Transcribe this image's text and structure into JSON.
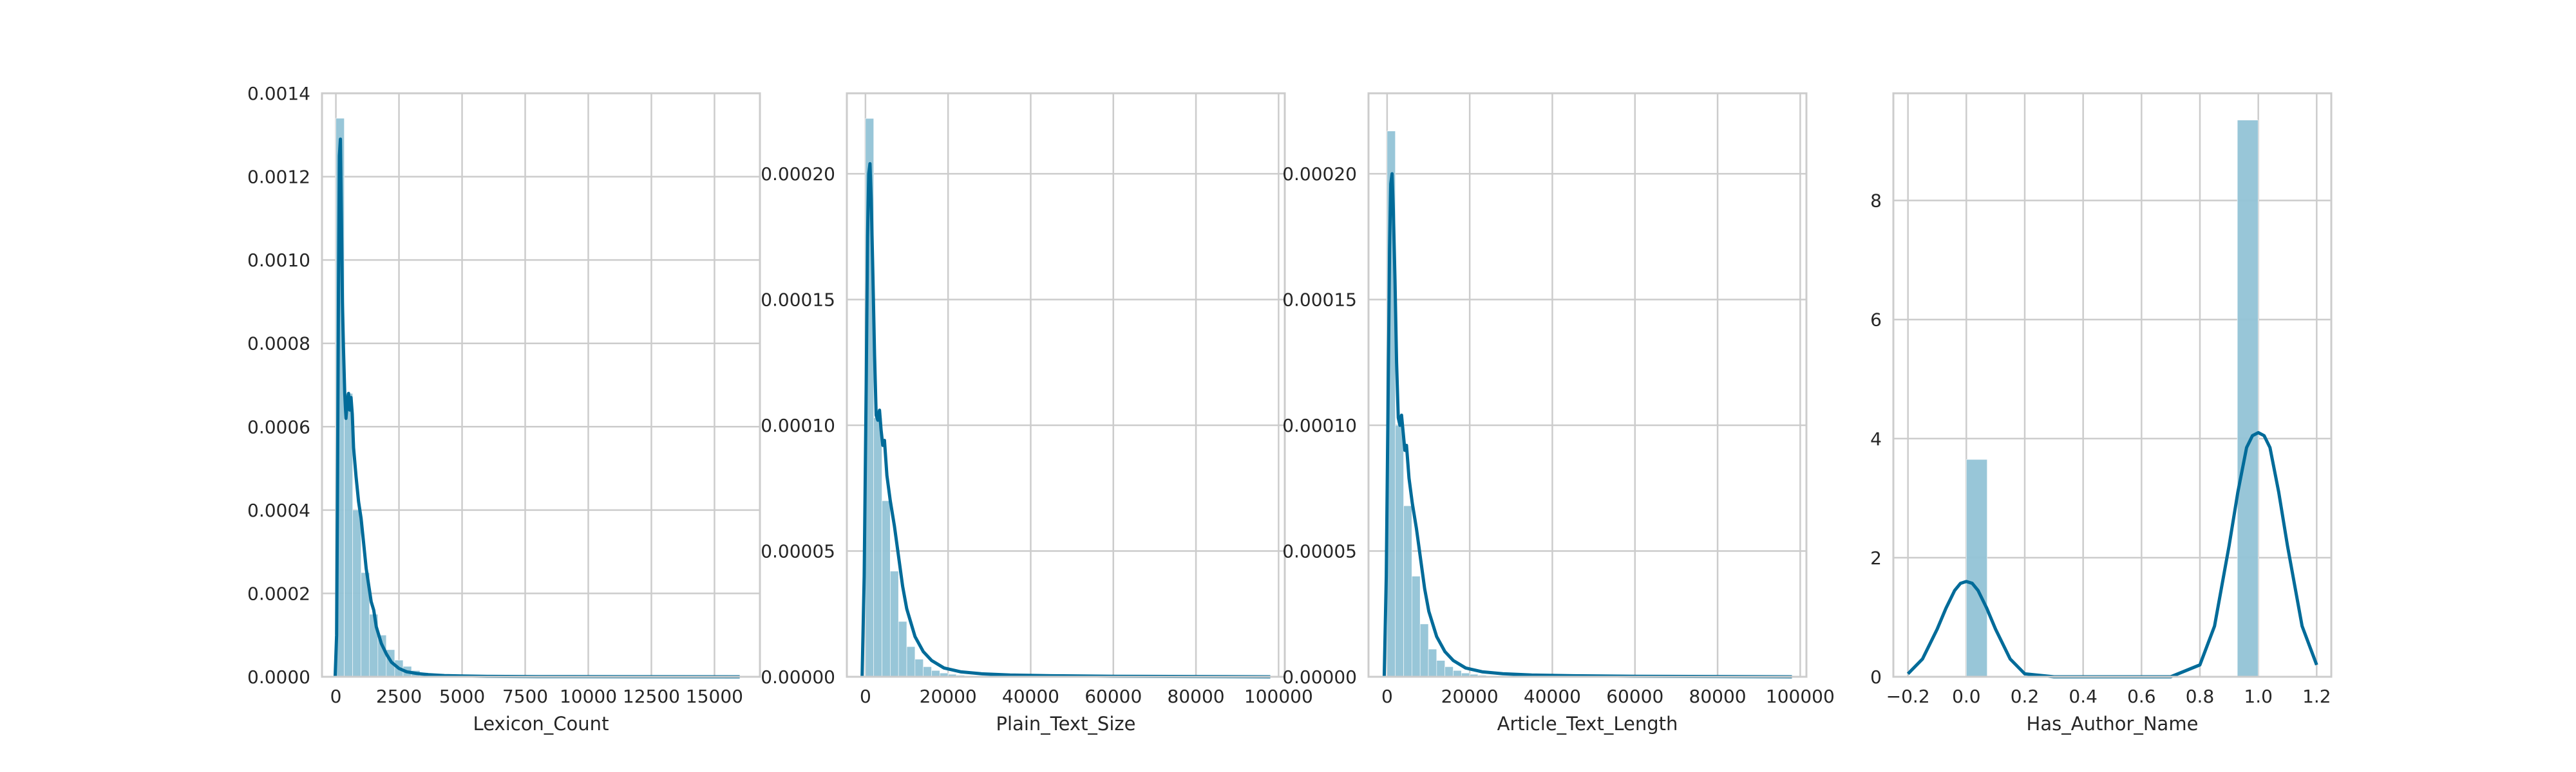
{
  "colors": {
    "hist_fill": "#92c3d6",
    "kde_line": "#006b99",
    "grid": "#cccccc",
    "frame": "#cccccc",
    "text": "#262626",
    "background": "#ffffff"
  },
  "chart_data": [
    {
      "type": "bar",
      "xlabel": "Lexicon_Count",
      "ylabel": "",
      "xlim": [
        -550,
        16800
      ],
      "ylim": [
        0,
        0.0014
      ],
      "xticks": [
        0,
        2500,
        5000,
        7500,
        10000,
        12500,
        15000
      ],
      "xtick_labels": [
        "0",
        "2500",
        "5000",
        "7500",
        "10000",
        "12500",
        "15000"
      ],
      "yticks": [
        0,
        0.0002,
        0.0004,
        0.0006,
        0.0008,
        0.001,
        0.0012,
        0.0014
      ],
      "ytick_labels": [
        "0.0000",
        "0.0002",
        "0.0004",
        "0.0006",
        "0.0008",
        "0.0010",
        "0.0012",
        "0.0014"
      ],
      "grid": true,
      "histogram": {
        "bin_start": 0,
        "bin_width": 333,
        "values": [
          0.00134,
          0.00068,
          0.0004,
          0.00025,
          0.00015,
          0.0001,
          6.5e-05,
          4e-05,
          2.5e-05,
          1.5e-05,
          1e-05,
          7e-06,
          5e-06,
          3e-06,
          2e-06,
          1e-06
        ]
      },
      "kde": {
        "x": [
          -30,
          30,
          60,
          100,
          140,
          180,
          220,
          260,
          300,
          350,
          400,
          450,
          500,
          550,
          600,
          650,
          700,
          800,
          900,
          1000,
          1100,
          1200,
          1300,
          1400,
          1500,
          1600,
          1700,
          1800,
          2000,
          2200,
          2500,
          2800,
          3200,
          3700,
          4300,
          5000,
          6000,
          8000,
          12000,
          16000
        ],
        "y": [
          0.0,
          0.0001,
          0.0004,
          0.0009,
          0.00125,
          0.00129,
          0.0011,
          0.0009,
          0.00079,
          0.00068,
          0.00062,
          0.00066,
          0.00068,
          0.00064,
          0.00067,
          0.00063,
          0.00055,
          0.00048,
          0.00042,
          0.00038,
          0.00032,
          0.00026,
          0.00022,
          0.00018,
          0.00016,
          0.00012,
          0.0001,
          8e-05,
          5.5e-05,
          3.5e-05,
          2e-05,
          1.2e-05,
          8e-06,
          5e-06,
          3e-06,
          2e-06,
          1e-06,
          5e-07,
          2e-07,
          0.0
        ]
      }
    },
    {
      "type": "bar",
      "xlabel": "Plain_Text_Size",
      "ylabel": "",
      "xlim": [
        -4500,
        101500
      ],
      "ylim": [
        0,
        0.000232
      ],
      "xticks": [
        0,
        20000,
        40000,
        60000,
        80000,
        100000
      ],
      "xtick_labels": [
        "0",
        "20000",
        "40000",
        "60000",
        "80000",
        "100000"
      ],
      "yticks": [
        0,
        5e-05,
        0.0001,
        0.00015,
        0.0002
      ],
      "ytick_labels": [
        "0.00000",
        "0.00005",
        "0.00010",
        "0.00015",
        "0.00020"
      ],
      "grid": true,
      "histogram": {
        "bin_start": 0,
        "bin_width": 2000,
        "values": [
          0.000222,
          0.000103,
          7e-05,
          4.2e-05,
          2.2e-05,
          1.2e-05,
          7e-06,
          4e-06,
          2.5e-06,
          1.5e-06,
          1e-06,
          6e-07,
          4e-07,
          3e-07
        ]
      },
      "kde": {
        "x": [
          -800,
          -300,
          200,
          500,
          800,
          1100,
          1400,
          1800,
          2200,
          2600,
          3000,
          3400,
          3800,
          4200,
          4600,
          5200,
          6000,
          7000,
          8000,
          9000,
          10000,
          12000,
          14000,
          16000,
          19000,
          23000,
          28000,
          35000,
          45000,
          60000,
          80000,
          98000
        ],
        "y": [
          0.0,
          4e-05,
          0.00012,
          0.000175,
          0.0002,
          0.000204,
          0.00019,
          0.00016,
          0.000128,
          0.000104,
          0.000102,
          0.000106,
          9.8e-05,
          9.2e-05,
          9.4e-05,
          8e-05,
          7e-05,
          6e-05,
          4.8e-05,
          3.6e-05,
          2.7e-05,
          1.6e-05,
          1e-05,
          6.5e-06,
          3.5e-06,
          2e-06,
          1.2e-06,
          7e-07,
          4e-07,
          2e-07,
          1e-07,
          0.0
        ]
      }
    },
    {
      "type": "bar",
      "xlabel": "Article_Text_Length",
      "ylabel": "",
      "xlim": [
        -4500,
        101500
      ],
      "ylim": [
        0,
        0.000232
      ],
      "xticks": [
        0,
        20000,
        40000,
        60000,
        80000,
        100000
      ],
      "xtick_labels": [
        "0",
        "20000",
        "40000",
        "60000",
        "80000",
        "100000"
      ],
      "yticks": [
        0,
        5e-05,
        0.0001,
        0.00015,
        0.0002
      ],
      "ytick_labels": [
        "0.00000",
        "0.00005",
        "0.00010",
        "0.00015",
        "0.00020"
      ],
      "grid": true,
      "histogram": {
        "bin_start": 0,
        "bin_width": 2000,
        "values": [
          0.000217,
          0.0001,
          6.8e-05,
          4e-05,
          2.1e-05,
          1.1e-05,
          6.5e-06,
          4e-06,
          2.5e-06,
          1.5e-06,
          1e-06,
          6e-07,
          4e-07,
          3e-07
        ]
      },
      "kde": {
        "x": [
          -700,
          -200,
          300,
          600,
          900,
          1200,
          1500,
          1900,
          2300,
          2700,
          3100,
          3500,
          3900,
          4300,
          4700,
          5300,
          6100,
          7100,
          8100,
          9100,
          10100,
          12000,
          14000,
          16000,
          19000,
          23000,
          28000,
          35000,
          45000,
          60000,
          80000,
          98000
        ],
        "y": [
          0.0,
          4e-05,
          0.00012,
          0.00017,
          0.000196,
          0.0002,
          0.000186,
          0.000158,
          0.000125,
          0.000103,
          0.0001,
          0.000104,
          9.7e-05,
          9e-05,
          9.2e-05,
          7.9e-05,
          6.9e-05,
          5.9e-05,
          4.7e-05,
          3.5e-05,
          2.6e-05,
          1.6e-05,
          1e-05,
          6.5e-06,
          3.5e-06,
          2e-06,
          1.2e-06,
          7e-07,
          4e-07,
          2e-07,
          1e-07,
          0.0
        ]
      }
    },
    {
      "type": "bar",
      "xlabel": "Has_Author_Name",
      "ylabel": "",
      "xlim": [
        -0.25,
        1.25
      ],
      "ylim": [
        0,
        9.8
      ],
      "xticks": [
        -0.2,
        0.0,
        0.2,
        0.4,
        0.6,
        0.8,
        1.0,
        1.2
      ],
      "xtick_labels": [
        "−0.2",
        "0.0",
        "0.2",
        "0.4",
        "0.6",
        "0.8",
        "1.0",
        "1.2"
      ],
      "yticks": [
        0,
        2,
        4,
        6,
        8
      ],
      "ytick_labels": [
        "0",
        "2",
        "4",
        "6",
        "8"
      ],
      "grid": true,
      "histogram": {
        "bin_start": 0,
        "bin_width": 0.0714,
        "values": [
          3.65,
          0,
          0,
          0,
          0,
          0,
          0,
          0,
          0,
          0,
          0,
          0,
          0,
          9.35
        ]
      },
      "kde": {
        "x": [
          -0.2,
          -0.15,
          -0.1,
          -0.07,
          -0.04,
          -0.02,
          0.0,
          0.02,
          0.04,
          0.07,
          0.1,
          0.15,
          0.2,
          0.3,
          0.4,
          0.5,
          0.6,
          0.7,
          0.8,
          0.85,
          0.9,
          0.93,
          0.96,
          0.98,
          1.0,
          1.02,
          1.04,
          1.07,
          1.1,
          1.15,
          1.2
        ],
        "y": [
          0.05,
          0.3,
          0.8,
          1.15,
          1.45,
          1.57,
          1.6,
          1.57,
          1.45,
          1.15,
          0.8,
          0.3,
          0.05,
          0.0,
          0.0,
          0.0,
          0.0,
          0.0,
          0.2,
          0.85,
          2.2,
          3.1,
          3.85,
          4.05,
          4.1,
          4.05,
          3.85,
          3.1,
          2.2,
          0.85,
          0.2
        ]
      }
    }
  ]
}
